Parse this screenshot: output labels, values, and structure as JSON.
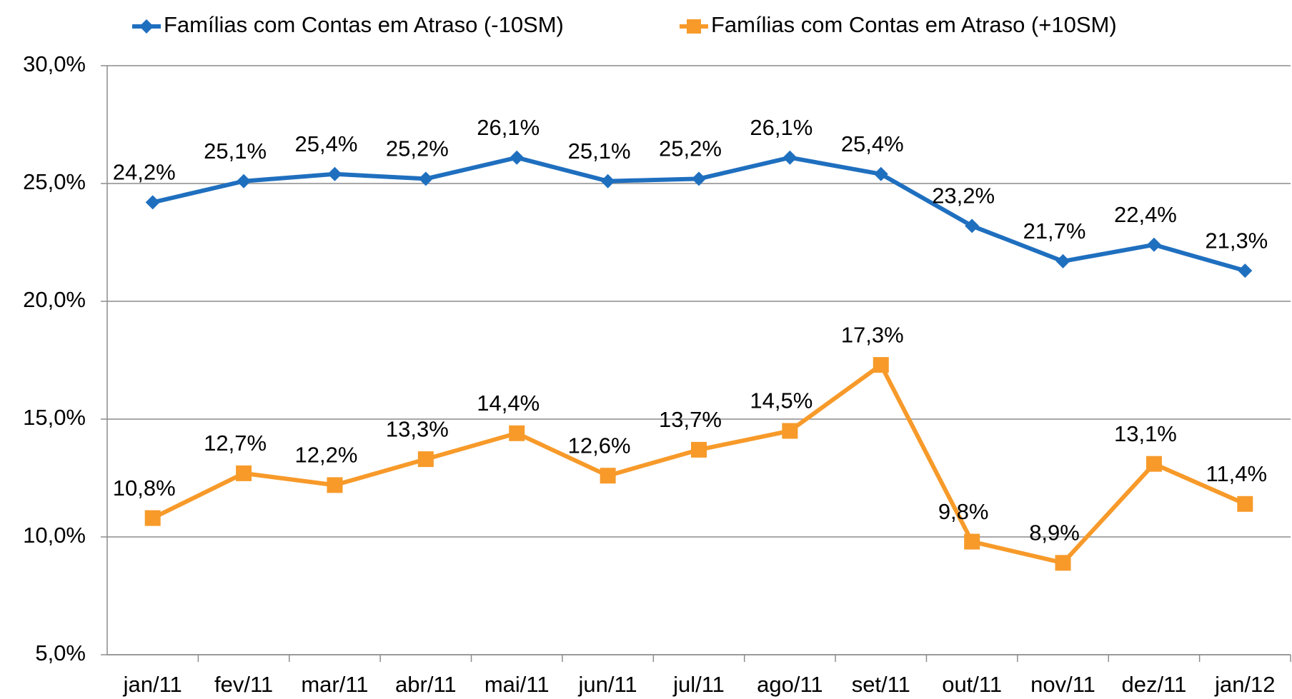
{
  "chart_data": {
    "type": "line",
    "categories": [
      "jan/11",
      "fev/11",
      "mar/11",
      "abr/11",
      "mai/11",
      "jun/11",
      "jul/11",
      "ago/11",
      "set/11",
      "out/11",
      "nov/11",
      "dez/11",
      "jan/12"
    ],
    "series": [
      {
        "name": "Famílias com Contas em Atraso (-10SM)",
        "color": "#1f6fbf",
        "marker": "diamond",
        "values": [
          24.2,
          25.1,
          25.4,
          25.2,
          26.1,
          25.1,
          25.2,
          26.1,
          25.4,
          23.2,
          21.7,
          22.4,
          21.3
        ],
        "value_labels": [
          "24,2%",
          "25,1%",
          "25,4%",
          "25,2%",
          "26,1%",
          "25,1%",
          "25,2%",
          "26,1%",
          "25,4%",
          "23,2%",
          "21,7%",
          "22,4%",
          "21,3%"
        ]
      },
      {
        "name": "Famílias com Contas em Atraso (+10SM)",
        "color": "#f79a2a",
        "marker": "square",
        "values": [
          10.8,
          12.7,
          12.2,
          13.3,
          14.4,
          12.6,
          13.7,
          14.5,
          17.3,
          9.8,
          8.9,
          13.1,
          11.4
        ],
        "value_labels": [
          "10,8%",
          "12,7%",
          "12,2%",
          "13,3%",
          "14,4%",
          "12,6%",
          "13,7%",
          "14,5%",
          "17,3%",
          "9,8%",
          "8,9%",
          "13,1%",
          "11,4%"
        ]
      }
    ],
    "ylim": [
      5,
      30
    ],
    "yticks": [
      {
        "value": 5,
        "label": "5,0%"
      },
      {
        "value": 10,
        "label": "10,0%"
      },
      {
        "value": 15,
        "label": "15,0%"
      },
      {
        "value": 20,
        "label": "20,0%"
      },
      {
        "value": 25,
        "label": "25,0%"
      },
      {
        "value": 30,
        "label": "30,0%"
      }
    ],
    "grid": true,
    "legend": "top"
  }
}
